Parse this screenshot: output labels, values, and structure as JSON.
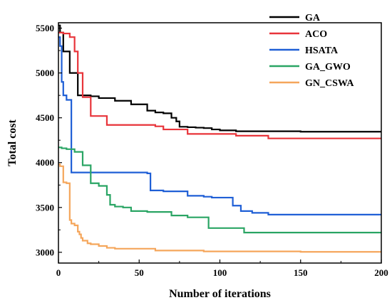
{
  "chart_data": {
    "type": "line",
    "title": "",
    "xlabel": "Number of iterations",
    "ylabel": "Total cost",
    "xlim": [
      0,
      200
    ],
    "ylim": [
      2880,
      5560
    ],
    "xticks": [
      0,
      50,
      100,
      150,
      200
    ],
    "yticks": [
      3000,
      3500,
      4000,
      4500,
      5000,
      5500
    ],
    "grid": false,
    "legend_position": "top-right",
    "step": true,
    "series": [
      {
        "name": "GA",
        "color": "#000000",
        "x": [
          0,
          1,
          3,
          7,
          12,
          20,
          25,
          35,
          45,
          55,
          60,
          65,
          70,
          73,
          75,
          80,
          85,
          90,
          95,
          100,
          110,
          150,
          200
        ],
        "y": [
          5530,
          5450,
          5240,
          5000,
          4750,
          4740,
          4720,
          4690,
          4650,
          4580,
          4560,
          4550,
          4500,
          4460,
          4400,
          4395,
          4390,
          4385,
          4370,
          4360,
          4350,
          4345,
          4345
        ]
      },
      {
        "name": "ACO",
        "color": "#e8343a",
        "x": [
          0,
          3,
          7,
          10,
          12,
          15,
          20,
          30,
          60,
          65,
          80,
          110,
          130,
          200
        ],
        "y": [
          5450,
          5440,
          5400,
          5240,
          5000,
          4730,
          4520,
          4420,
          4405,
          4370,
          4320,
          4300,
          4270,
          4270
        ]
      },
      {
        "name": "HSATA",
        "color": "#1f5fd6",
        "x": [
          0,
          1,
          2,
          3,
          5,
          8,
          55,
          57,
          65,
          80,
          90,
          95,
          108,
          113,
          120,
          130,
          200
        ],
        "y": [
          5400,
          5300,
          4900,
          4750,
          4700,
          3890,
          3880,
          3690,
          3680,
          3630,
          3620,
          3610,
          3520,
          3460,
          3440,
          3420,
          3420
        ]
      },
      {
        "name": "GA_GWO",
        "color": "#2aa564",
        "x": [
          0,
          2,
          5,
          10,
          15,
          20,
          25,
          30,
          32,
          35,
          40,
          45,
          55,
          70,
          80,
          93,
          115,
          200
        ],
        "y": [
          4170,
          4160,
          4150,
          4120,
          3970,
          3770,
          3740,
          3640,
          3530,
          3510,
          3500,
          3460,
          3450,
          3410,
          3390,
          3270,
          3220,
          3220
        ]
      },
      {
        "name": "GN_CSWA",
        "color": "#f5a65b",
        "x": [
          0,
          1,
          3,
          5,
          7,
          8,
          10,
          12,
          13,
          14,
          15,
          18,
          20,
          25,
          30,
          35,
          60,
          90,
          150,
          200
        ],
        "y": [
          3980,
          3960,
          3780,
          3770,
          3360,
          3320,
          3300,
          3230,
          3200,
          3160,
          3130,
          3100,
          3090,
          3070,
          3050,
          3040,
          3020,
          3010,
          3005,
          3005
        ]
      }
    ]
  }
}
